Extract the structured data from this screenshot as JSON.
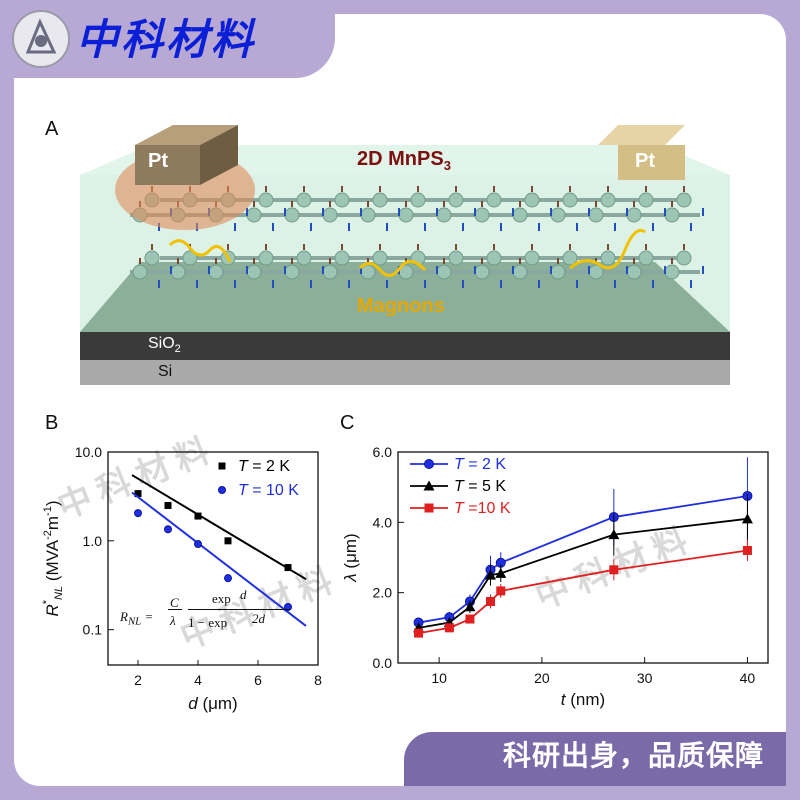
{
  "header": {
    "brand": "中科材料"
  },
  "footer": {
    "slogan": "科研出身，品质保障"
  },
  "panels": {
    "a": {
      "label": "A",
      "material": "2D MnPS",
      "material_sub": "3",
      "electrode_left": "Pt",
      "electrode_right": "Pt",
      "magnons": "Magnons",
      "sio2": "SiO",
      "sio2_sub": "2",
      "si": "Si"
    },
    "b": {
      "label": "B",
      "formula": {
        "lhs": "R",
        "lhs_sub": "NL",
        "C": "C",
        "lambda": "λ",
        "exp_num": "exp",
        "d": "d",
        "one_minus": "1 − exp",
        "two_d": "2d"
      }
    },
    "c": {
      "label": "C"
    }
  },
  "watermark": {
    "text": "中科材料"
  },
  "chart_data": [
    {
      "type": "scatter",
      "xlabel": "d (μm)",
      "ylabel": "R*NL (MVA-2m-1)",
      "ylabel_parts": {
        "sym": "R",
        "sup": "*",
        "sub": "NL",
        "unit": " (MVA",
        "u_sup1": "-2",
        "u_m": "m",
        "u_sup2": "-1",
        "close": ")"
      },
      "xlim": [
        1,
        8
      ],
      "ylim": [
        0.04,
        10
      ],
      "yscale": "log",
      "xticks": [
        "2",
        "4",
        "6",
        "8"
      ],
      "yticks": [
        "10.0",
        "1.0",
        "0.1"
      ],
      "series": [
        {
          "name": "T =  2 K",
          "name_T": "T",
          "name_rest": " =  2 K",
          "color": "#000000",
          "marker": "square",
          "x": [
            2,
            3,
            4,
            5,
            7
          ],
          "y": [
            3.4,
            2.5,
            1.9,
            1.0,
            0.5
          ],
          "fit_x": [
            1.8,
            7.6
          ],
          "fit_start": 5.5,
          "fit_end": 0.37
        },
        {
          "name": "T = 10 K",
          "name_T": "T",
          "name_rest": " = 10 K",
          "color": "#1f2fe0",
          "marker": "circle",
          "x": [
            2,
            3,
            4,
            5,
            7
          ],
          "y": [
            2.05,
            1.35,
            0.92,
            0.38,
            0.18
          ],
          "fit_x": [
            1.8,
            7.6
          ],
          "fit_start": 3.5,
          "fit_end": 0.11
        }
      ]
    },
    {
      "type": "line",
      "xlabel": "t (nm)",
      "ylabel": "λ (μm)",
      "xlim": [
        6,
        42
      ],
      "ylim": [
        0,
        6
      ],
      "xticks": [
        "10",
        "20",
        "30",
        "40"
      ],
      "yticks": [
        "0.0",
        "2.0",
        "4.0",
        "6.0"
      ],
      "series": [
        {
          "name": "T = 2 K",
          "name_T": "T",
          "name_rest": " = 2 K",
          "color": "#1f2fe0",
          "marker": "circle",
          "x": [
            8,
            11,
            13,
            15,
            16,
            27,
            40
          ],
          "y": [
            1.15,
            1.3,
            1.75,
            2.65,
            2.85,
            4.15,
            4.75
          ],
          "err": [
            0.1,
            0.15,
            0.2,
            0.4,
            0.3,
            0.8,
            1.1
          ]
        },
        {
          "name": "T = 5 K",
          "name_T": "T",
          "name_rest": " = 5 K",
          "color": "#000000",
          "marker": "triangle",
          "x": [
            8,
            11,
            13,
            15,
            16,
            27,
            40
          ],
          "y": [
            1.0,
            1.15,
            1.6,
            2.5,
            2.55,
            3.65,
            4.1
          ],
          "err": [
            0.1,
            0.12,
            0.18,
            0.3,
            0.25,
            0.6,
            0.7
          ]
        },
        {
          "name": "T =10 K",
          "name_T": "T",
          "name_rest": " =10 K",
          "color": "#e02020",
          "marker": "square",
          "x": [
            8,
            11,
            13,
            15,
            16,
            27,
            40
          ],
          "y": [
            0.85,
            1.0,
            1.25,
            1.75,
            2.05,
            2.65,
            3.2
          ],
          "err": [
            0.1,
            0.1,
            0.12,
            0.2,
            0.2,
            0.3,
            0.3
          ]
        }
      ]
    }
  ]
}
